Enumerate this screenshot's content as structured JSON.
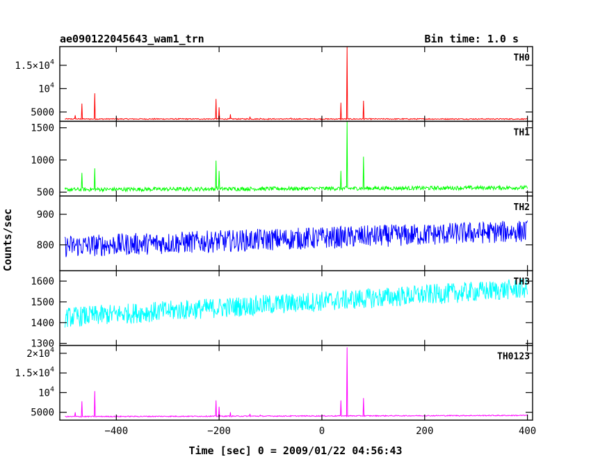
{
  "header": {
    "title": "ae090122045643_wam1_trn",
    "bin_time": "Bin time: 1.0 s"
  },
  "axes": {
    "xlabel": "Time [sec] 0 = 2009/01/22 04:56:43",
    "ylabel": "Counts/sec"
  },
  "chart_data": {
    "type": "line",
    "xlim": [
      -510,
      410
    ],
    "x_ticks": [
      -400,
      -200,
      0,
      200,
      400
    ],
    "x_tick_labels": [
      "−400",
      "−200",
      "0",
      "200",
      "400"
    ],
    "grid": false,
    "panels": [
      {
        "name": "TH0",
        "color": "#ff0000",
        "ylim": [
          3000,
          19000
        ],
        "y_ticks": [
          5000,
          10000,
          15000
        ],
        "y_tick_labels": [
          {
            "m": "5000",
            "e": ""
          },
          {
            "m": "10",
            "e": "4"
          },
          {
            "m": "1.5×10",
            "e": "4"
          }
        ],
        "baseline": 3500,
        "noise": 80,
        "trend": 0,
        "spikes": [
          [
            -480,
            4300
          ],
          [
            -467,
            6800
          ],
          [
            -442,
            9000
          ],
          [
            -206,
            7800
          ],
          [
            -200,
            6000
          ],
          [
            -178,
            4500
          ],
          [
            -140,
            4000
          ],
          [
            37,
            7000
          ],
          [
            49,
            19000
          ],
          [
            81,
            7400
          ],
          [
            -60,
            3700
          ],
          [
            -120,
            3650
          ]
        ]
      },
      {
        "name": "TH1",
        "color": "#00ff00",
        "ylim": [
          440,
          1600
        ],
        "y_ticks": [
          500,
          1000,
          1500
        ],
        "y_tick_labels": [
          {
            "m": "500",
            "e": ""
          },
          {
            "m": "1000",
            "e": ""
          },
          {
            "m": "1500",
            "e": ""
          }
        ],
        "baseline": 540,
        "noise": 22,
        "trend": 30,
        "spikes": [
          [
            -467,
            800
          ],
          [
            -442,
            870
          ],
          [
            -206,
            990
          ],
          [
            -200,
            830
          ],
          [
            37,
            830
          ],
          [
            49,
            1600
          ],
          [
            81,
            1050
          ]
        ]
      },
      {
        "name": "TH2",
        "color": "#0000ff",
        "ylim": [
          715,
          960
        ],
        "y_ticks": [
          800,
          900
        ],
        "y_tick_labels": [
          {
            "m": "800",
            "e": ""
          },
          {
            "m": "900",
            "e": ""
          }
        ],
        "baseline": 795,
        "noise": 26,
        "trend": 50,
        "spikes": []
      },
      {
        "name": "TH3",
        "color": "#00ffff",
        "ylim": [
          1290,
          1650
        ],
        "y_ticks": [
          1300,
          1400,
          1500,
          1600
        ],
        "y_tick_labels": [
          {
            "m": "1300",
            "e": ""
          },
          {
            "m": "1400",
            "e": ""
          },
          {
            "m": "1500",
            "e": ""
          },
          {
            "m": "1600",
            "e": ""
          }
        ],
        "baseline": 1425,
        "noise": 35,
        "trend": 140,
        "spikes": []
      },
      {
        "name": "TH0123",
        "color": "#ff00ff",
        "ylim": [
          3000,
          22000
        ],
        "y_ticks": [
          5000,
          10000,
          15000,
          20000
        ],
        "y_tick_labels": [
          {
            "m": "5000",
            "e": ""
          },
          {
            "m": "10",
            "e": "4"
          },
          {
            "m": "1.5×10",
            "e": "4"
          },
          {
            "m": "2×10",
            "e": "4"
          }
        ],
        "baseline": 3900,
        "noise": 90,
        "trend": 300,
        "spikes": [
          [
            -480,
            5000
          ],
          [
            -467,
            7800
          ],
          [
            -442,
            10400
          ],
          [
            -206,
            8000
          ],
          [
            -200,
            6400
          ],
          [
            -178,
            5000
          ],
          [
            -140,
            4600
          ],
          [
            37,
            8000
          ],
          [
            49,
            21500
          ],
          [
            81,
            8600
          ],
          [
            -120,
            4300
          ]
        ]
      }
    ]
  }
}
